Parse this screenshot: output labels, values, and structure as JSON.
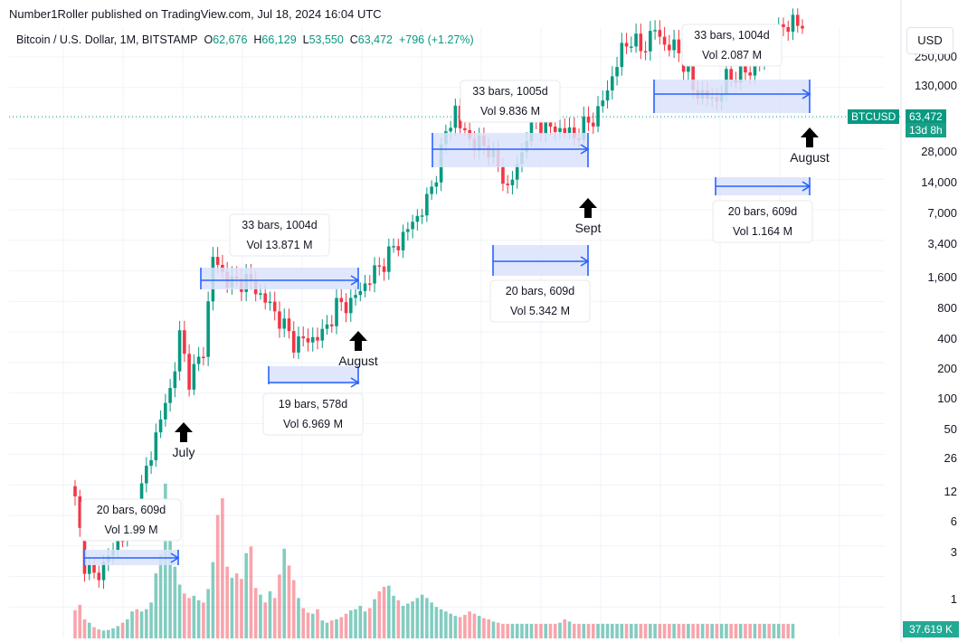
{
  "header": {
    "published": "Number1Roller published on TradingView.com, Jul 18, 2024 16:04 UTC"
  },
  "symbol": {
    "name": "Bitcoin / U.S. Dollar, 1M, BITSTAMP",
    "open_label": "O",
    "open": "62,676",
    "high_label": "H",
    "high": "66,129",
    "low_label": "L",
    "low": "53,550",
    "close_label": "C",
    "close": "63,472",
    "change": "+796 (+1.27%)"
  },
  "currency_button": "USD",
  "price_tag": {
    "ticker": "BTCUSD",
    "price": "63,472",
    "countdown": "13d 8h"
  },
  "volume_tag": "37.619 K",
  "colors": {
    "up": "#089981",
    "down": "#f23645",
    "range_fill": "#dbe3fb",
    "range_line": "#2962ff"
  },
  "chart_data": {
    "type": "candlestick",
    "y_scale": "log",
    "y_ticks": [
      "250,000",
      "130,000",
      "63,472",
      "28,000",
      "14,000",
      "7,000",
      "3,400",
      "1,600",
      "800",
      "400",
      "200",
      "100",
      "50",
      "26",
      "12",
      "6",
      "3",
      "1"
    ],
    "ranges": [
      {
        "label": "20 bars, 609d",
        "vol": "Vol 1.99 M"
      },
      {
        "label": "33 bars, 1004d",
        "vol": "Vol 13.871 M"
      },
      {
        "label": "19 bars, 578d",
        "vol": "Vol 6.969 M"
      },
      {
        "label": "33 bars, 1005d",
        "vol": "Vol 9.836 M"
      },
      {
        "label": "20 bars, 609d",
        "vol": "Vol 5.342 M"
      },
      {
        "label": "33 bars, 1004d",
        "vol": "Vol 2.087 M"
      },
      {
        "label": "20 bars, 609d",
        "vol": "Vol 1.164 M"
      }
    ],
    "annotations": [
      "July",
      "August",
      "Sept",
      "August"
    ],
    "waypoints": [
      [
        0,
        12
      ],
      [
        2,
        4
      ],
      [
        4,
        3
      ],
      [
        8,
        5
      ],
      [
        12,
        9
      ],
      [
        14,
        15
      ],
      [
        17,
        40
      ],
      [
        20,
        90
      ],
      [
        22,
        230
      ],
      [
        24,
        110
      ],
      [
        26,
        150
      ],
      [
        27,
        180
      ],
      [
        29,
        1000
      ],
      [
        30,
        800
      ],
      [
        33,
        600
      ],
      [
        36,
        650
      ],
      [
        40,
        450
      ],
      [
        43,
        320
      ],
      [
        46,
        210
      ],
      [
        49,
        220
      ],
      [
        52,
        240
      ],
      [
        55,
        400
      ],
      [
        58,
        430
      ],
      [
        61,
        600
      ],
      [
        65,
        900
      ],
      [
        70,
        1600
      ],
      [
        74,
        2600
      ],
      [
        76,
        4500
      ],
      [
        78,
        9000
      ],
      [
        80,
        14000
      ],
      [
        81,
        10000
      ],
      [
        84,
        7500
      ],
      [
        87,
        7000
      ],
      [
        90,
        4000
      ],
      [
        91,
        3400
      ],
      [
        93,
        4800
      ],
      [
        95,
        9000
      ],
      [
        97,
        11000
      ],
      [
        100,
        10000
      ],
      [
        103,
        9500
      ],
      [
        105,
        8500
      ],
      [
        108,
        11000
      ],
      [
        110,
        13000
      ],
      [
        113,
        25000
      ],
      [
        115,
        40000
      ],
      [
        117,
        50000
      ],
      [
        119,
        40000
      ],
      [
        122,
        58000
      ],
      [
        124,
        45000
      ],
      [
        127,
        40000
      ],
      [
        130,
        20000
      ],
      [
        133,
        17000
      ],
      [
        135,
        16500
      ],
      [
        137,
        24000
      ],
      [
        140,
        27000
      ],
      [
        142,
        28000
      ],
      [
        145,
        35000
      ],
      [
        147,
        43000
      ],
      [
        149,
        65000
      ],
      [
        151,
        64000
      ],
      [
        153,
        63472
      ]
    ],
    "volume": [
      2.5,
      3.0,
      1.7,
      1.4,
      1.0,
      0.8,
      0.7,
      0.75,
      0.9,
      1.1,
      1.4,
      1.7,
      2.4,
      2.6,
      2.4,
      2.6,
      3.2,
      5.8,
      7.5,
      13.8,
      9.4,
      6.4,
      4.8,
      4.0,
      3.6,
      3.8,
      3.4,
      3.2,
      4.4,
      6.8,
      11.0,
      12.5,
      6.4,
      5.4,
      5.8,
      5.3,
      7.6,
      8.2,
      4.5,
      3.9,
      3.2,
      4.2,
      3.6,
      5.7,
      8.0,
      6.5,
      5.2,
      3.6,
      2.7,
      2.3,
      2.2,
      2.6,
      1.6,
      1.4,
      1.6,
      1.7,
      1.9,
      2.2,
      2.5,
      2.6,
      2.9,
      2.4,
      2.7,
      3.5,
      4.2,
      4.6,
      4.7,
      3.8,
      3.4,
      2.9,
      3.1,
      3.3,
      3.6,
      3.9,
      3.6,
      3.2,
      2.8,
      2.6,
      2.4,
      2.2,
      2.0,
      1.9,
      2.1,
      2.4,
      2.2,
      2.0,
      1.8,
      1.7,
      1.5,
      1.4,
      1.3,
      1.3,
      1.3,
      1.3,
      1.3,
      1.3,
      1.3,
      1.3,
      1.3,
      1.3,
      1.3,
      1.3,
      1.4,
      1.7,
      1.5,
      1.3,
      1.3,
      1.3,
      1.3,
      1.3,
      1.3,
      1.3,
      1.3,
      1.3,
      1.3,
      1.3,
      1.3,
      1.3,
      1.3,
      1.3,
      1.3,
      1.3,
      1.3,
      1.3,
      1.3,
      1.3,
      1.3,
      1.3,
      1.3,
      1.3,
      1.3,
      1.3,
      1.3,
      1.3,
      1.3,
      1.3,
      1.3,
      1.3,
      1.3,
      1.3,
      1.3,
      1.3,
      1.3,
      1.3,
      1.3,
      1.3,
      1.3,
      1.3,
      1.3,
      1.3,
      1.3,
      1.3
    ]
  }
}
